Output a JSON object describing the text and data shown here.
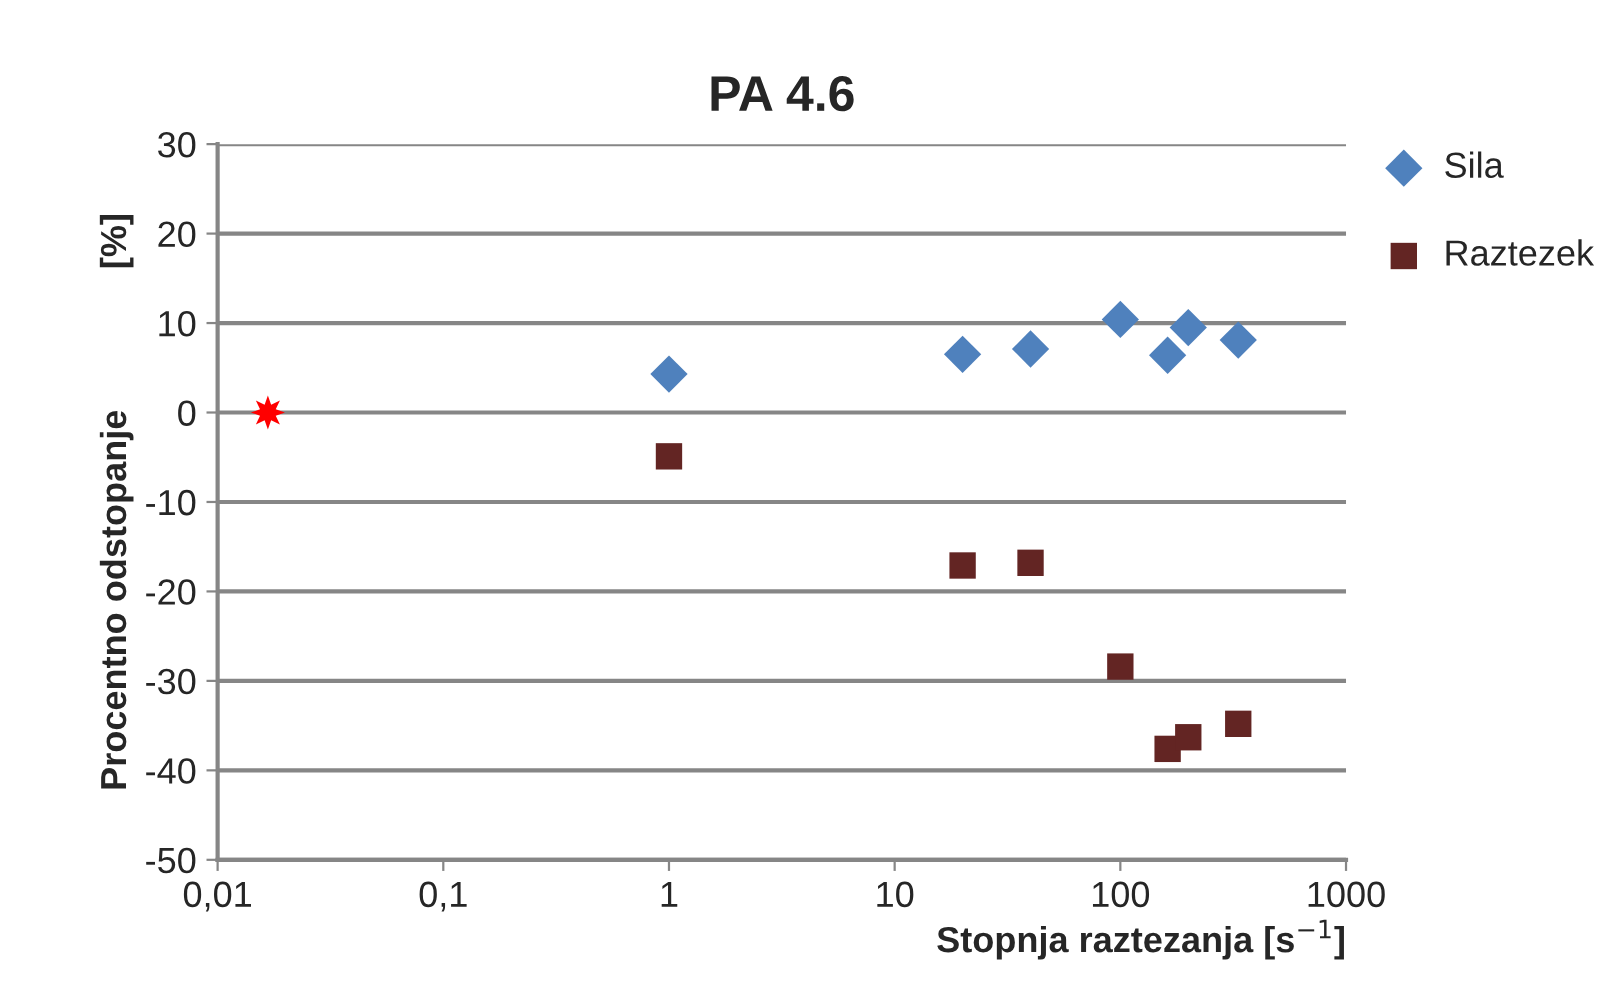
{
  "chart_data": {
    "type": "scatter",
    "title": "PA 4.6",
    "xlabel": "Stopnja raztezanja [s$^{−1}$]",
    "ylabel": "Procentno odstopanje              [%]",
    "log": "x",
    "xlim": [
      0.01,
      1000
    ],
    "xticks": [
      {
        "value": 0.01,
        "label": "0,01"
      },
      {
        "value": 0.1,
        "label": "0,1"
      },
      1,
      10,
      100,
      1000
    ],
    "ylim": [
      -50,
      30
    ],
    "yticks": [
      -50,
      -40,
      -30,
      -20,
      -10,
      0,
      10,
      20,
      30
    ],
    "grid": "y",
    "legend": "top right",
    "series": [
      {
        "name": "Sila",
        "color": "#4f81bd",
        "marker": "diamond",
        "x": [
          1,
          20,
          40,
          100,
          162,
          200,
          333
        ],
        "values": [
          4.3,
          6.5,
          7.1,
          10.4,
          6.4,
          9.5,
          8.1
        ]
      },
      {
        "name": "Raztezek",
        "color": "#632523",
        "marker": "square",
        "x": [
          1,
          20,
          40,
          100,
          162,
          200,
          333
        ],
        "values": [
          -4.9,
          -17.1,
          -16.8,
          -28.4,
          -37.6,
          -36.3,
          -34.8
        ]
      },
      {
        "color": "#ff0000",
        "marker": "star",
        "x": [
          0.0167
        ],
        "values": [
          0
        ]
      }
    ]
  }
}
